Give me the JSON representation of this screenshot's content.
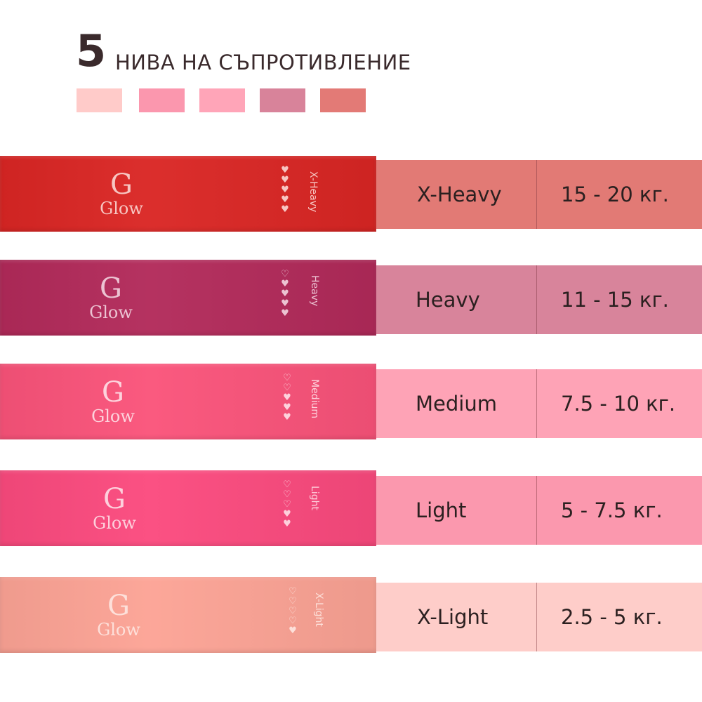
{
  "header": {
    "number": "5",
    "title": "НИВА НА СЪПРОТИВЛЕНИЕ",
    "swatches": [
      "#ffcbc9",
      "#fb97ae",
      "#ffa5b8",
      "#d8839a",
      "#e37a76"
    ]
  },
  "bands": [
    {
      "logo_letter": "G",
      "logo_word": "Glow",
      "label": "X-Heavy",
      "filled_hearts": 5,
      "total_hearts": 5,
      "band_color": "#da2624",
      "text_color": "#f7c6c2",
      "cell_color": "#e27a75",
      "name": "X-Heavy",
      "weight": "15 - 20 кг."
    },
    {
      "logo_letter": "G",
      "logo_word": "Glow",
      "label": "Heavy",
      "filled_hearts": 4,
      "total_hearts": 5,
      "band_color": "#b22a5a",
      "text_color": "#ecc3d2",
      "cell_color": "#d8849b",
      "name": "Heavy",
      "weight": "11 - 15 кг."
    },
    {
      "logo_letter": "G",
      "logo_word": "Glow",
      "label": "Medium",
      "filled_hearts": 3,
      "total_hearts": 5,
      "band_color": "#fa537a",
      "text_color": "#fdd3dd",
      "cell_color": "#fea3b6",
      "name": "Medium",
      "weight": "7.5 - 10 кг."
    },
    {
      "logo_letter": "G",
      "logo_word": "Glow",
      "label": "Light",
      "filled_hearts": 2,
      "total_hearts": 5,
      "band_color": "#fb4a7e",
      "text_color": "#fdd0dc",
      "cell_color": "#fb98ae",
      "name": "Light",
      "weight": "5 - 7.5 кг."
    },
    {
      "logo_letter": "G",
      "logo_word": "Glow",
      "label": "X-Light",
      "filled_hearts": 1,
      "total_hearts": 5,
      "band_color": "#fca395",
      "text_color": "#fde0da",
      "cell_color": "#fecdc9",
      "name": "X-Light",
      "weight": "2.5 - 5 кг."
    }
  ]
}
